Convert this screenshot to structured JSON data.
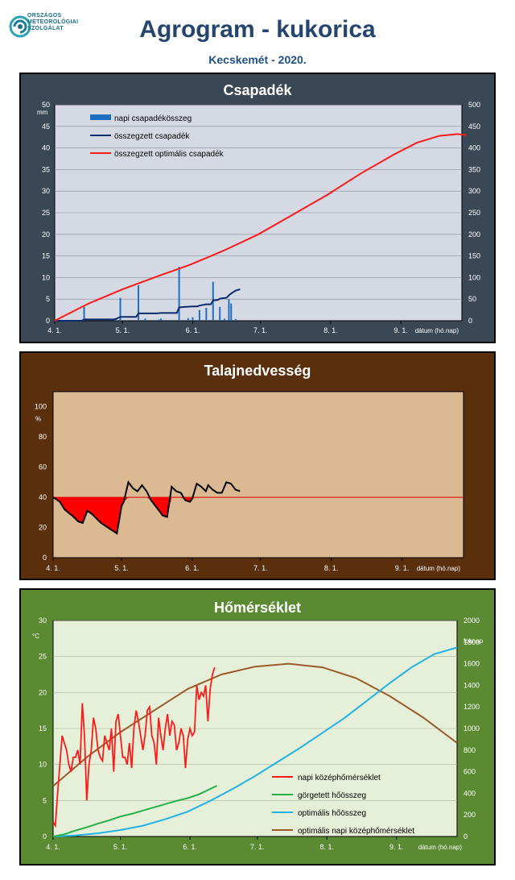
{
  "header": {
    "logo_lines": [
      "ORSZÁGOS",
      "METEOROLÓGIAI",
      "SZOLGÁLAT"
    ],
    "title": "Agrogram - kukorica",
    "subtitle": "Kecskemét - 2020."
  },
  "colors": {
    "title": "#24456f",
    "precip_bar": "#1f6fc0",
    "cum_precip": "#0d2a6b",
    "optimal_precip": "#ff1a1a",
    "soil_line": "#000000",
    "soil_fill": "#ff0000",
    "temp_daily": "#ff1a1a",
    "temp_cum": "#22b04c",
    "temp_opt_cum": "#22b2e8",
    "temp_opt_daily": "#9b5a2a"
  },
  "chart_data": [
    {
      "type": "bar",
      "title": "Csapadék",
      "x_tick_labels": [
        "4. 1.",
        "5. 1.",
        "6. 1.",
        "7. 1.",
        "8. 1.",
        "9. 1."
      ],
      "x_tick_days": [
        0,
        30,
        61,
        91,
        122,
        153
      ],
      "x_unit_label": "dátum (hó.nap)",
      "x_range_days": [
        0,
        180
      ],
      "y_left_unit": "mm",
      "y_left_range": [
        0,
        50
      ],
      "y_left_ticks": [
        0,
        5,
        10,
        15,
        20,
        25,
        30,
        35,
        40,
        45,
        50
      ],
      "y_right_range": [
        0,
        500
      ],
      "y_right_ticks": [
        0,
        50,
        100,
        150,
        200,
        250,
        300,
        350,
        400,
        450,
        500
      ],
      "legend": [
        "napi csapadékösszeg",
        "összegzett csapadék",
        "összegzett optimális  csapadék"
      ],
      "legend_position": "top-left",
      "grid": true,
      "daily_precip": {
        "axis": "left",
        "days": [
          13,
          27,
          29,
          37,
          40,
          46,
          47,
          55,
          59,
          61,
          64,
          67,
          70,
          73,
          75,
          77,
          78,
          80
        ],
        "values": [
          3.2,
          0.4,
          5.3,
          8.2,
          0.5,
          0.3,
          0.5,
          12.5,
          0.6,
          0.8,
          2.5,
          3.0,
          9.0,
          3.2,
          0.5,
          5.0,
          4.0,
          0.4
        ]
      },
      "cumulative_precip": {
        "axis": "right",
        "days": [
          0,
          12,
          13,
          26,
          27,
          29,
          36,
          37,
          45,
          47,
          54,
          55,
          58,
          61,
          63,
          64,
          67,
          69,
          70,
          72,
          73,
          74,
          76,
          77,
          78,
          80,
          82
        ],
        "values": [
          0,
          0,
          3,
          3,
          4,
          9,
          9,
          17,
          17,
          18,
          18,
          31,
          32,
          33,
          33,
          35,
          38,
          38,
          47,
          48,
          51,
          52,
          53,
          59,
          63,
          70,
          73
        ]
      },
      "optimal_cumulative_precip": {
        "axis": "right",
        "days": [
          0,
          15,
          30,
          45,
          60,
          75,
          90,
          105,
          120,
          135,
          150,
          160,
          170,
          178,
          182
        ],
        "values": [
          0,
          40,
          73,
          102,
          130,
          163,
          200,
          245,
          290,
          340,
          385,
          412,
          428,
          432,
          430
        ]
      }
    },
    {
      "type": "area",
      "title": "Talajnedvesség",
      "x_tick_labels": [
        "4. 1.",
        "5. 1.",
        "6. 1.",
        "7. 1.",
        "8. 1.",
        "9. 1."
      ],
      "x_tick_days": [
        0,
        30,
        61,
        91,
        122,
        153
      ],
      "x_unit_label": "dátum (hó.nap)",
      "x_range_days": [
        0,
        180
      ],
      "y_unit": "%",
      "y_range": [
        0,
        110
      ],
      "y_ticks": [
        0,
        20,
        40,
        60,
        80,
        100
      ],
      "threshold": 40,
      "grid": false,
      "soil_moisture": {
        "days": [
          0,
          3,
          5,
          9,
          11,
          13,
          15,
          17,
          19,
          21,
          23,
          25,
          26,
          28,
          30,
          31,
          33,
          35,
          37,
          39,
          41,
          43,
          45,
          47,
          48,
          50,
          52,
          54,
          56,
          58,
          60,
          61,
          63,
          65,
          67,
          68,
          70,
          72,
          74,
          76,
          78,
          80,
          82
        ],
        "values": [
          40,
          37,
          32,
          27,
          24,
          23,
          31,
          29,
          26,
          23,
          21,
          19,
          18,
          16,
          34,
          37,
          50,
          46,
          44,
          48,
          44,
          38,
          34,
          30,
          28,
          27,
          47,
          44,
          43,
          38,
          37,
          39,
          49,
          47,
          44,
          48,
          45,
          43,
          43,
          50,
          49,
          45,
          44
        ]
      }
    },
    {
      "type": "line",
      "title": "Hőmérséklet",
      "x_tick_labels": [
        "4. 1.",
        "5. 1.",
        "6. 1.",
        "7. 1.",
        "8. 1.",
        "9. 1."
      ],
      "x_tick_days": [
        0,
        30,
        61,
        91,
        122,
        153
      ],
      "x_unit_label": "dátum (hó.nap)",
      "x_range_days": [
        0,
        180
      ],
      "y_left_unit": "°C",
      "y_left_range": [
        0,
        30
      ],
      "y_left_ticks": [
        0,
        5,
        10,
        15,
        20,
        25,
        30
      ],
      "y_right_unit": "foknap",
      "y_right_range": [
        0,
        2000
      ],
      "y_right_ticks": [
        0,
        200,
        400,
        600,
        800,
        1000,
        1200,
        1400,
        1600,
        1800,
        2000
      ],
      "legend": [
        "napi középhőmérséklet",
        "görgetett hőösszeg",
        "optimális hőösszeg",
        "optimális napi középhőmérséklet"
      ],
      "legend_position": "bottom-right",
      "grid": true,
      "daily_mean_temp": {
        "axis": "left",
        "days": [
          0,
          1,
          2,
          3,
          4,
          5,
          6,
          7,
          8,
          9,
          10,
          11,
          12,
          13,
          14,
          15,
          16,
          17,
          18,
          19,
          20,
          21,
          22,
          23,
          24,
          25,
          26,
          27,
          28,
          29,
          30,
          31,
          32,
          33,
          34,
          35,
          36,
          37,
          38,
          39,
          40,
          41,
          42,
          43,
          44,
          45,
          46,
          47,
          48,
          49,
          50,
          51,
          52,
          53,
          54,
          55,
          56,
          57,
          58,
          59,
          60,
          61,
          62,
          63,
          64,
          65,
          66,
          67,
          68,
          69,
          70,
          71,
          72
        ],
        "values": [
          2,
          1.5,
          6,
          10,
          14,
          13,
          12,
          10,
          9,
          11,
          11,
          12,
          10,
          18.5,
          14,
          5,
          10,
          12,
          16.5,
          15,
          12,
          11,
          10.5,
          14,
          13,
          12,
          15,
          9,
          16,
          17,
          14,
          11,
          11,
          10,
          13,
          9.5,
          15,
          17.5,
          16,
          14,
          12,
          14,
          17.5,
          18,
          14,
          13,
          10,
          16.5,
          14,
          12,
          15,
          17,
          14,
          16,
          15.5,
          12,
          13,
          15,
          14,
          9.5,
          13.5,
          15,
          14,
          14.5,
          21,
          19,
          20,
          19.5,
          21,
          16,
          20.5,
          22.5,
          23.5
        ]
      },
      "cumulative_heat": {
        "axis": "right",
        "days": [
          0,
          5,
          10,
          15,
          20,
          25,
          30,
          35,
          40,
          45,
          50,
          55,
          60,
          65,
          70,
          73
        ],
        "values": [
          0,
          20,
          55,
          85,
          120,
          150,
          185,
          210,
          240,
          270,
          300,
          330,
          355,
          390,
          440,
          470
        ]
      },
      "optimal_cumulative_heat": {
        "axis": "right",
        "days": [
          0,
          10,
          20,
          30,
          40,
          50,
          60,
          70,
          80,
          90,
          100,
          110,
          120,
          130,
          140,
          150,
          160,
          170,
          180
        ],
        "values": [
          0,
          10,
          30,
          60,
          100,
          160,
          230,
          330,
          440,
          560,
          690,
          820,
          960,
          1100,
          1260,
          1420,
          1570,
          1690,
          1750
        ]
      },
      "optimal_daily_temp": {
        "axis": "left",
        "days": [
          0,
          15,
          30,
          45,
          60,
          75,
          90,
          105,
          120,
          135,
          150,
          165,
          180
        ],
        "values": [
          7,
          11,
          14.5,
          17.5,
          20.5,
          22.5,
          23.6,
          24,
          23.5,
          22,
          19.5,
          16.5,
          13
        ]
      }
    }
  ]
}
